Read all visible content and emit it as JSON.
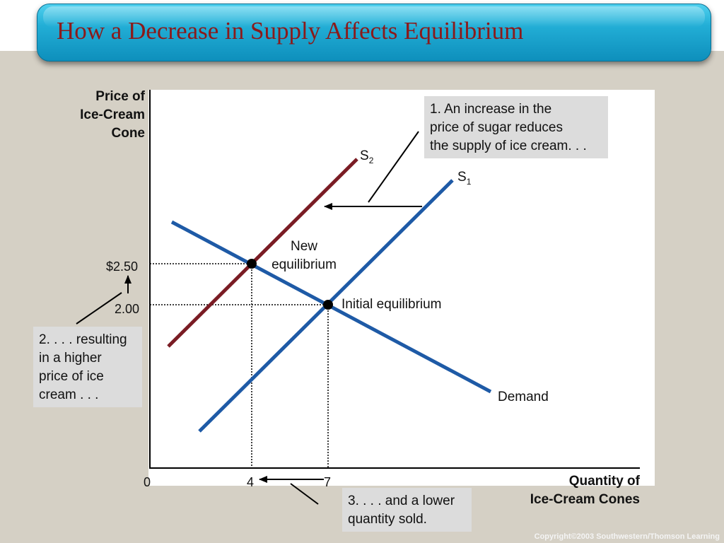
{
  "title": "How a Decrease in Supply Affects Equilibrium",
  "axes": {
    "y_label": "Price of\nIce-Cream\nCone",
    "x_label": "Quantity of\nIce-Cream Cones",
    "origin": "0",
    "y_ticks": [
      "$2.50",
      "2.00"
    ],
    "x_ticks": [
      "4",
      "7"
    ]
  },
  "curves": {
    "s1_label": "S",
    "s1_sub": "1",
    "s2_label": "S",
    "s2_sub": "2",
    "demand_label": "Demand"
  },
  "equilibria": {
    "new": "New\nequilibrium",
    "initial": "Initial equilibrium"
  },
  "callouts": {
    "step1": "1. An increase in the\nprice of sugar reduces\nthe supply of ice cream. . .",
    "step2": "2. . . . resulting\nin a higher\nprice of ice\ncream . . .",
    "step3": "3. . . . and a lower\nquantity sold."
  },
  "colors": {
    "s1": "#1e5aa6",
    "s2": "#7a1c24",
    "demand": "#1e5aa6",
    "title_text": "#8b1a1a"
  },
  "copyright": "Copyright©2003  Southwestern/Thomson Learning"
}
